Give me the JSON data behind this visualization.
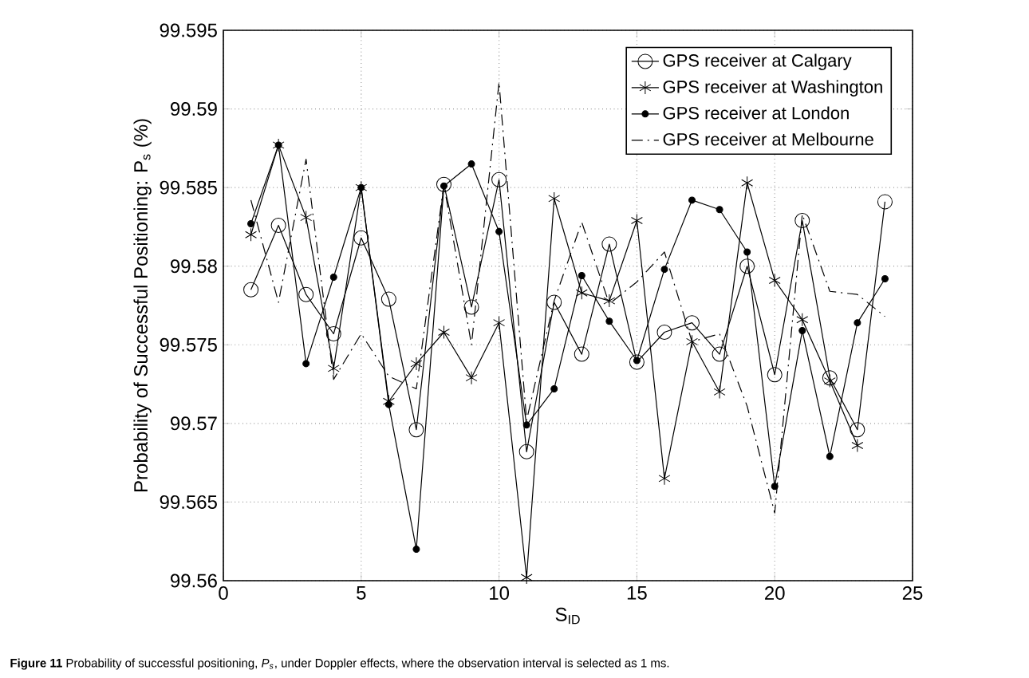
{
  "chart_data": {
    "type": "line",
    "xlabel": "S$_{ID}$",
    "ylabel": "Probability of Successful Positioning: P$_{s}$ (%)",
    "annotations": [
      "**Figure 11** Probability of successful positioning, *P$_{s}$*, under Doppler effects, where the observation interval is selected as 1 ms."
    ],
    "x": [
      1,
      2,
      3,
      4,
      5,
      6,
      7,
      8,
      9,
      10,
      11,
      12,
      13,
      14,
      15,
      16,
      17,
      18,
      19,
      20,
      21,
      22,
      23,
      24
    ],
    "series": [
      {
        "name": "GPS receiver at Calgary",
        "color": "#000000",
        "marker": "circle",
        "line_style": "solid",
        "values": [
          99.5785,
          99.5826,
          99.5782,
          99.5757,
          99.5818,
          99.5779,
          99.5696,
          99.5852,
          99.5774,
          99.5855,
          99.5682,
          99.5777,
          99.5744,
          99.5814,
          99.5739,
          99.5758,
          99.5764,
          99.5744,
          99.58,
          99.5731,
          99.5829,
          99.5729,
          99.5696,
          99.5841
        ]
      },
      {
        "name": "GPS receiver at Washington",
        "color": "#000000",
        "marker": "cross",
        "line_style": "solid",
        "values": [
          99.582,
          99.5877,
          99.5831,
          99.5735,
          99.585,
          99.5714,
          99.5738,
          99.5758,
          99.5729,
          99.5764,
          99.5602,
          99.5843,
          99.5783,
          99.5778,
          99.5829,
          99.5665,
          99.5752,
          99.572,
          99.5853,
          99.5791,
          99.5766,
          99.5727,
          99.5686,
          null
        ]
      },
      {
        "name": "GPS receiver at London",
        "color": "#000000",
        "marker": "dot",
        "line_style": "solid",
        "values": [
          99.5827,
          99.5877,
          99.5738,
          99.5793,
          99.585,
          99.5712,
          99.562,
          99.5851,
          99.5865,
          99.5822,
          99.5699,
          99.5722,
          99.5794,
          99.5765,
          99.574,
          99.5798,
          99.5842,
          99.5836,
          99.5809,
          99.566,
          99.5759,
          99.5679,
          99.5764,
          99.5792
        ]
      },
      {
        "name": "GPS receiver at Melbourne",
        "color": "#000000",
        "marker": "none",
        "line_style": "dashed",
        "values": [
          99.5842,
          99.5777,
          99.5868,
          99.5728,
          99.5757,
          99.573,
          99.5722,
          99.5852,
          99.575,
          99.5917,
          99.5702,
          99.5778,
          99.5828,
          99.5776,
          99.579,
          99.5809,
          99.5752,
          99.5757,
          99.5711,
          99.5643,
          99.5833,
          99.5784,
          99.5782,
          99.5768
        ]
      }
    ],
    "xlim": [
      0,
      25
    ],
    "ylim": [
      99.56,
      99.595
    ],
    "xticks": [
      0,
      5,
      10,
      15,
      20,
      25
    ],
    "yticks": [
      99.56,
      99.565,
      99.57,
      99.575,
      99.58,
      99.585,
      99.59,
      99.595
    ],
    "grid": true,
    "legend": "top right"
  }
}
